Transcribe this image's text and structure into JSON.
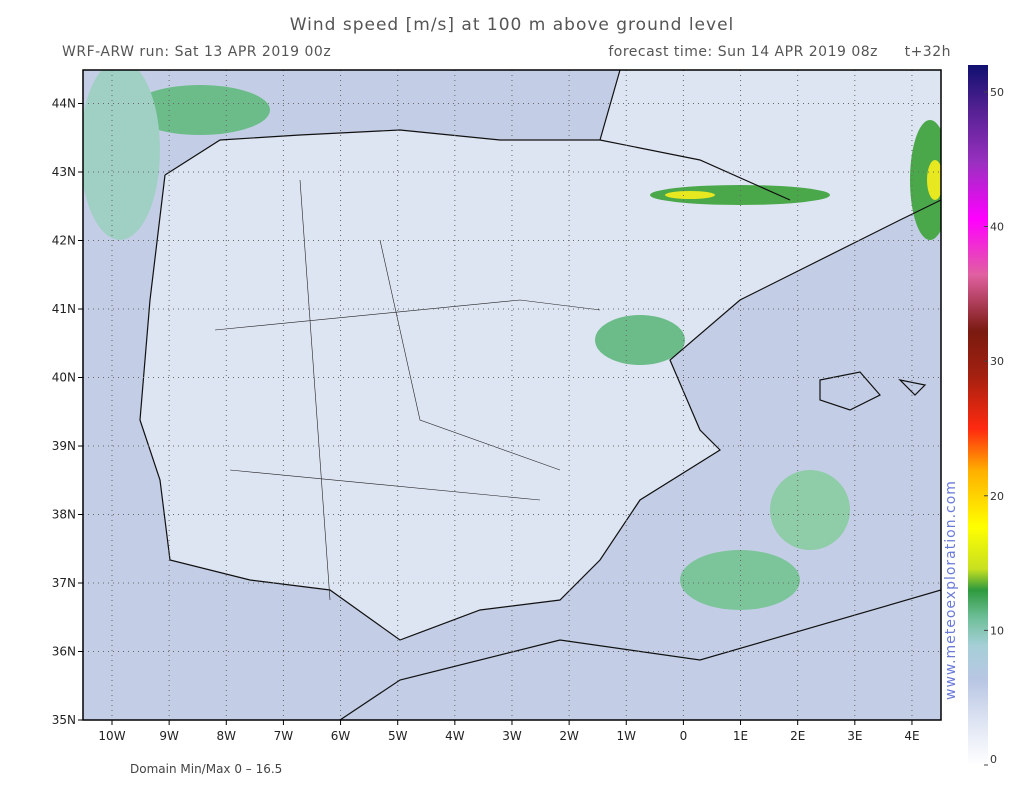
{
  "header": {
    "title": "Wind speed [m/s] at 100 m above ground level",
    "run": "WRF-ARW run: Sat 13 APR 2019 00z",
    "forecast": "forecast time: Sun 14 APR 2019 08z",
    "lead": "t+32h"
  },
  "lat_labels": [
    "35N",
    "36N",
    "37N",
    "38N",
    "39N",
    "40N",
    "41N",
    "42N",
    "43N",
    "44N"
  ],
  "lon_labels": [
    "10W",
    "9W",
    "8W",
    "7W",
    "6W",
    "5W",
    "4W",
    "3W",
    "2W",
    "1W",
    "0",
    "1E",
    "2E",
    "3E",
    "4E"
  ],
  "colorbar": {
    "range": [
      0,
      52
    ],
    "ticks": [
      0,
      10,
      20,
      30,
      40,
      50
    ]
  },
  "footer": "Domain Min/Max 0 – 16.5",
  "credit": "www.meteoexploration.com"
}
